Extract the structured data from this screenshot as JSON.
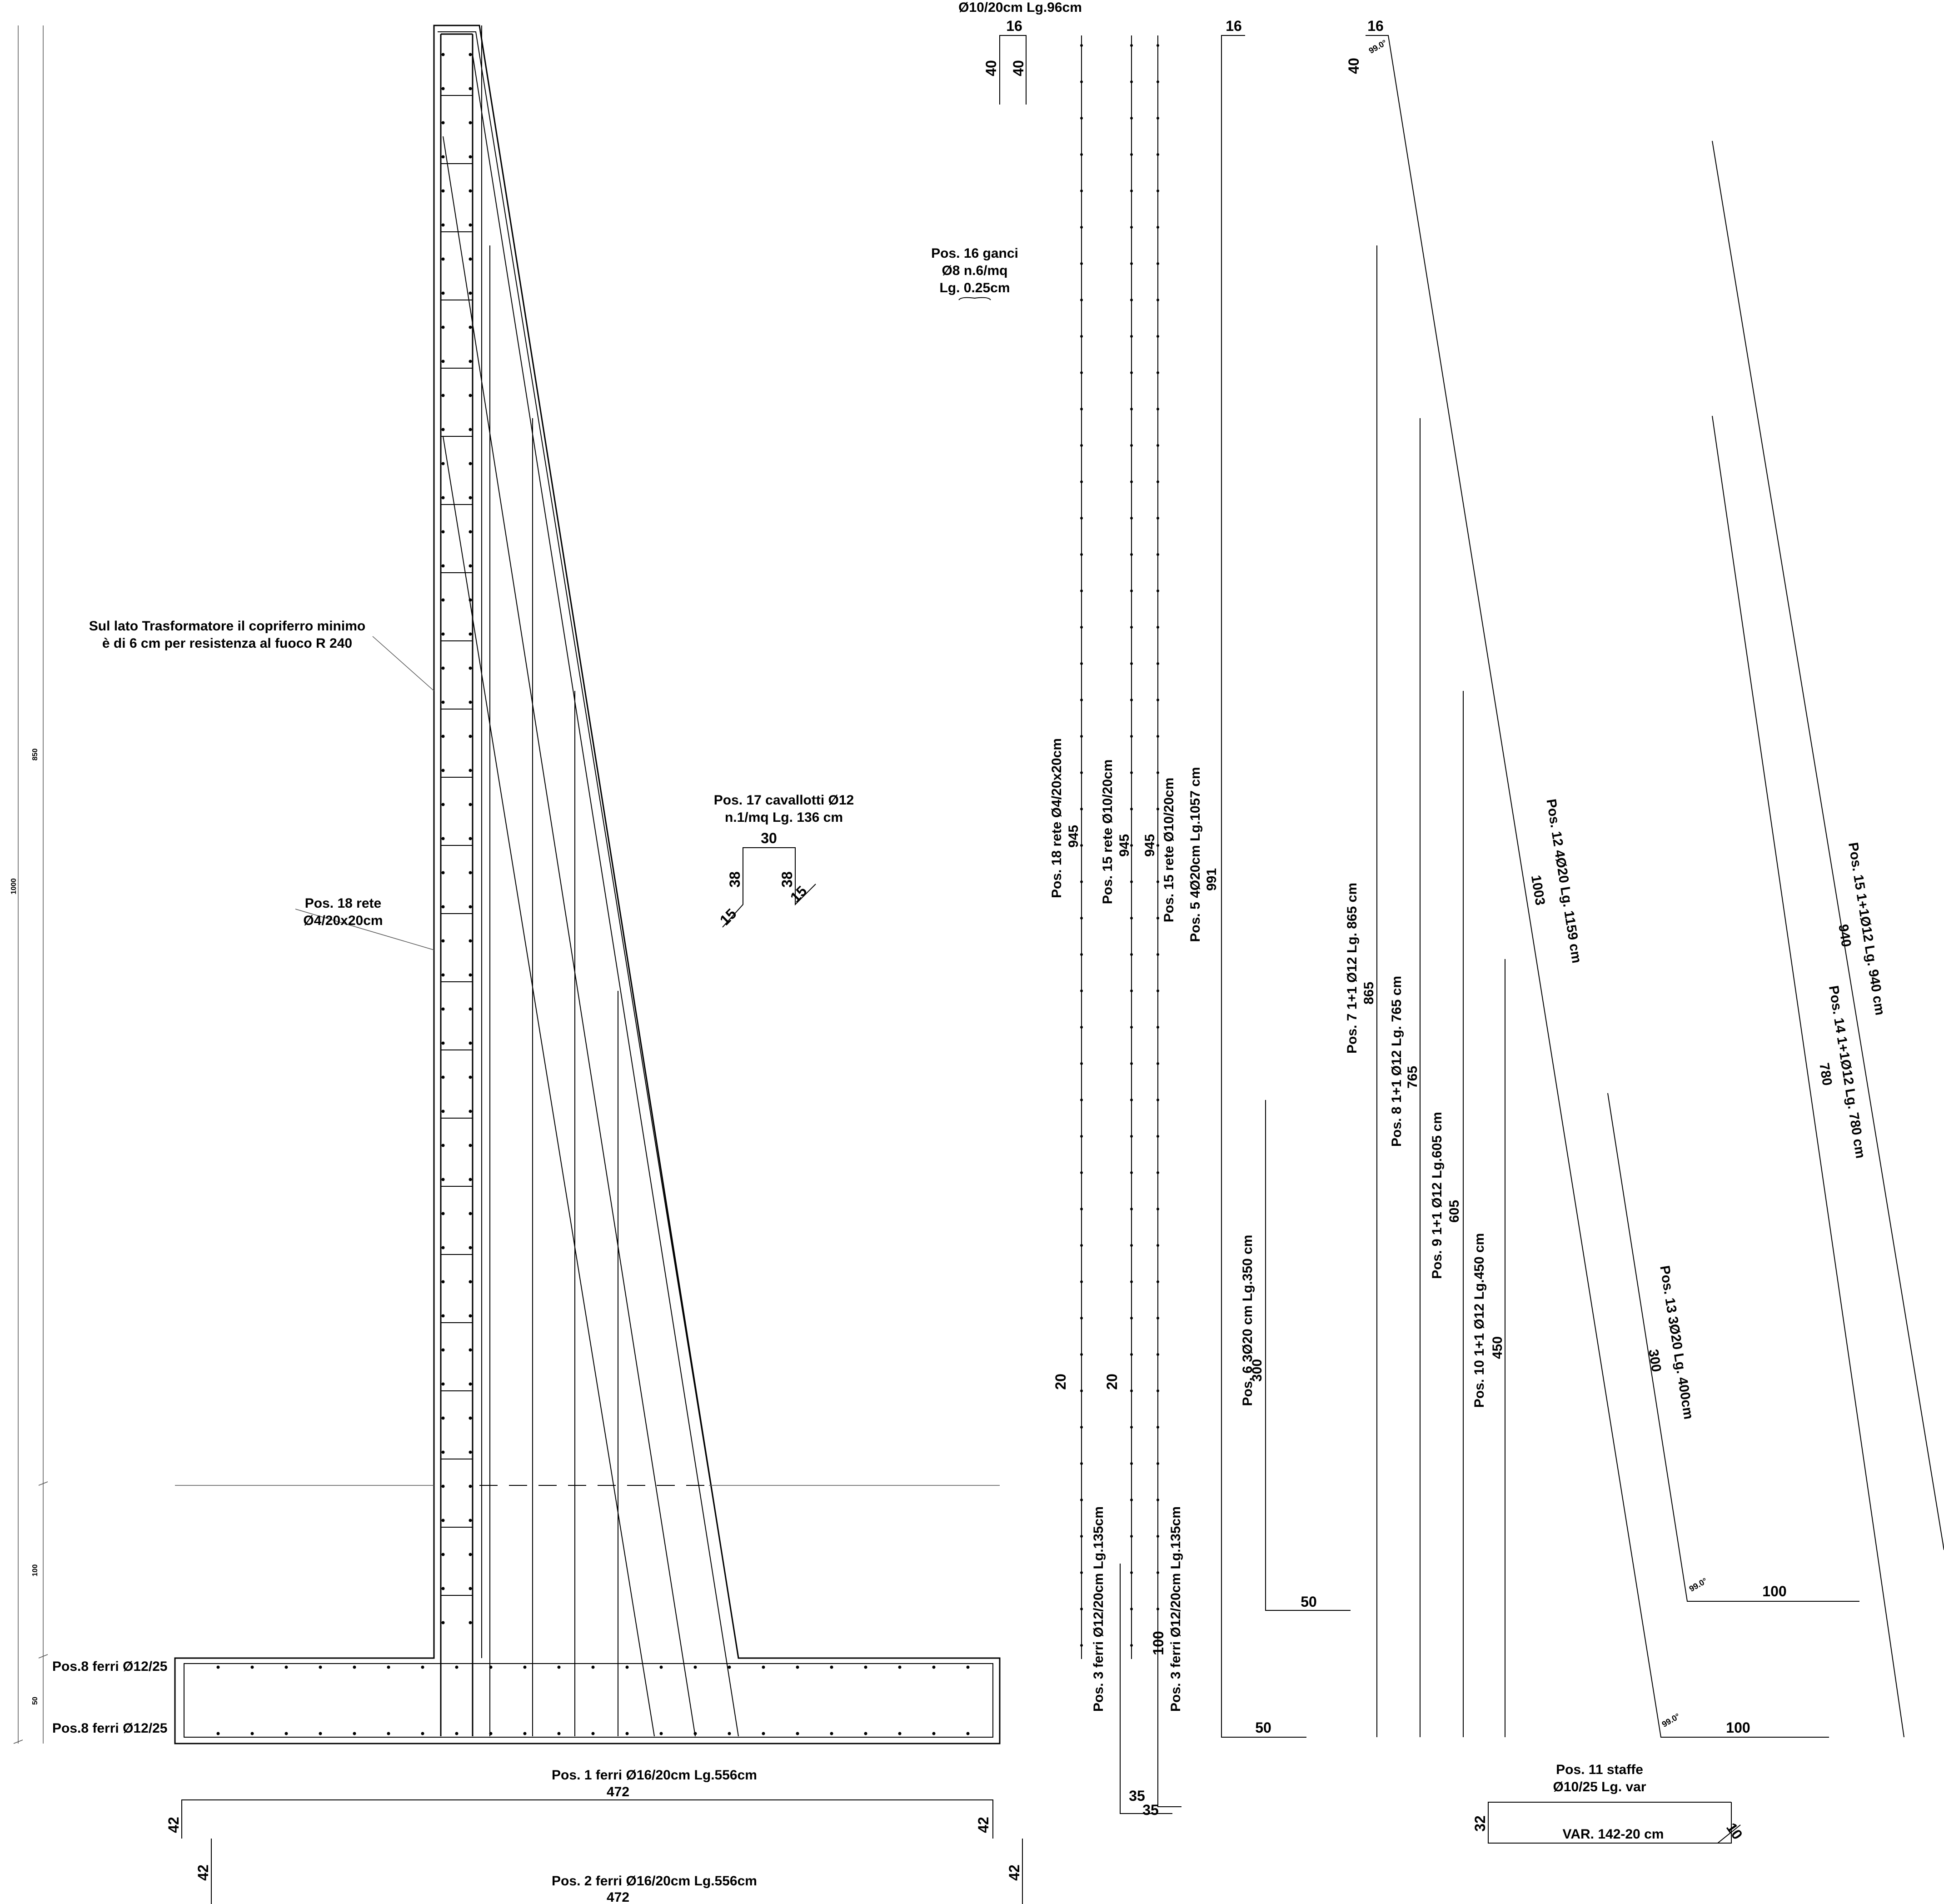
{
  "notes": {
    "cover_line1": "Sul lato Trasformatore il copriferro minimo",
    "cover_line2": "è di 6 cm per resistenza al fuoco R 240",
    "pos18_line1": "Pos. 18 rete",
    "pos18_line2": "Ø4/20x20cm",
    "pos8_top": "Pos.8 ferri Ø12/25",
    "pos8_bottom": "Pos.8 ferri Ø12/25"
  },
  "dimensions_left": {
    "total": "1000",
    "wall": "850",
    "embed": "100",
    "base": "50"
  },
  "pos1": {
    "line1": "Pos. 1 ferri Ø16/20cm Lg.556cm",
    "line2": "472",
    "hook_left": "42",
    "hook_right": "42"
  },
  "pos2": {
    "line1": "Pos. 2 ferri Ø16/20cm Lg.556cm",
    "line2": "472",
    "hook_left": "42",
    "hook_right": "42"
  },
  "pos_top": {
    "label": "Ø10/20cm Lg.96cm",
    "width": "16",
    "leg_left": "40",
    "leg_right": "40"
  },
  "pos16": {
    "line1": "Pos. 16 ganci",
    "line2": "Ø8 n.6/mq",
    "line3": "Lg. 0.25cm"
  },
  "pos17": {
    "line1": "Pos. 17 cavallotti Ø12",
    "line2": "n.1/mq Lg. 136 cm",
    "top": "30",
    "leg_left": "38",
    "leg_right": "38",
    "hook_left": "15",
    "hook_right": "15"
  },
  "vertical_bars": [
    {
      "label": "Pos. 18 rete Ø4/20x20cm",
      "length": "945",
      "end": "20"
    },
    {
      "label": "Pos. 15 rete Ø10/20cm",
      "length": "945",
      "end": "20"
    },
    {
      "label": "Pos. 15 rete Ø10/20cm",
      "length": "945"
    },
    {
      "label": "Pos. 5 4Ø20cm Lg.1057 cm",
      "length": "991",
      "top": "16",
      "foot": "50"
    },
    {
      "label": "Pos. 6 3Ø20 cm Lg.350 cm",
      "length": "300",
      "foot": "50"
    },
    {
      "label": "Pos. 7 1+1 Ø12 Lg. 865 cm",
      "length": "865"
    },
    {
      "label": "Pos. 8 1+1 Ø12 Lg. 765 cm",
      "length": "765"
    },
    {
      "label": "Pos. 9 1+1 Ø12 Lg.605 cm",
      "length": "605"
    },
    {
      "label": "Pos. 10 1+1 Ø12 Lg.450 cm",
      "length": "450"
    }
  ],
  "pos3": [
    {
      "label": "Pos. 3 ferri Ø12/20cm Lg.135cm",
      "leg": "100",
      "foot": "35"
    },
    {
      "label": "Pos. 3 ferri Ø12/20cm Lg.135cm",
      "foot": "35"
    }
  ],
  "inclined_bars": [
    {
      "label": "Pos. 12 4Ø20 Lg. 1159 cm",
      "length": "1003",
      "top": "16",
      "top_leg": "40",
      "foot": "100",
      "angle": "99.0°"
    },
    {
      "label": "Pos. 13 3Ø20 Lg. 400cm",
      "length": "300",
      "foot": "100",
      "angle": "99.0°"
    },
    {
      "label": "Pos. 14 1+1Ø12 Lg. 780 cm",
      "length": "780"
    },
    {
      "label": "Pos. 15 1+1Ø12 Lg. 940 cm",
      "length": "940"
    }
  ],
  "pos11": {
    "line1": "Pos. 11 staffe",
    "line2": "Ø10/25 Lg. var",
    "height": "32",
    "length": "VAR. 142-20 cm",
    "hook": "10"
  }
}
